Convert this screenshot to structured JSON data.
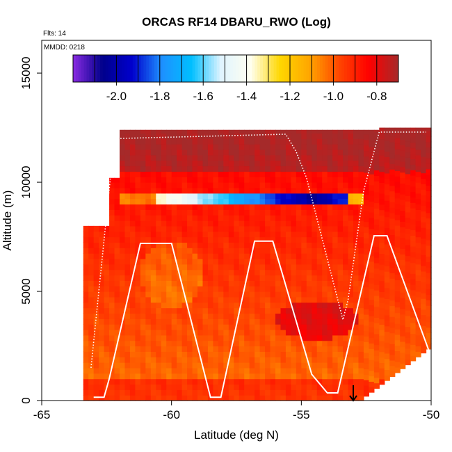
{
  "chart_data": {
    "type": "heatmap",
    "title": "ORCAS RF14 DBARU_RWO (Log)",
    "xlabel": "Latitude (deg N)",
    "ylabel": "Altitude (m)",
    "xlim": [
      -65,
      -50
    ],
    "ylim": [
      0,
      16500
    ],
    "x_ticks": [
      -65,
      -60,
      -55,
      -50
    ],
    "x_tick_labels": [
      "-65",
      "-60",
      "-55",
      "-50"
    ],
    "y_ticks": [
      0,
      5000,
      10000,
      15000
    ],
    "y_tick_labels": [
      "0",
      "5000",
      "10000",
      "15000"
    ],
    "annotations": {
      "flights": "Flts: 14",
      "mmdd": "MMDD: 0218"
    },
    "colorbar": {
      "ticks": [
        -2.0,
        -1.8,
        -1.6,
        -1.4,
        -1.2,
        -1.0,
        -0.8
      ],
      "tick_labels": [
        "-2.0",
        "-1.8",
        "-1.6",
        "-1.4",
        "-1.2",
        "-1.0",
        "-0.8"
      ],
      "range": [
        -2.2,
        -0.7
      ],
      "colors": [
        "#8a2be2",
        "#00008b",
        "#0000cd",
        "#1e90ff",
        "#00bfff",
        "#e0f4ff",
        "#fffff0",
        "#ffd700",
        "#ffa500",
        "#ff4500",
        "#ff0000",
        "#a52a2a"
      ]
    },
    "flight_track": [
      [
        -63.0,
        150
      ],
      [
        -62.6,
        150
      ],
      [
        -62.4,
        1000
      ],
      [
        -61.2,
        7200
      ],
      [
        -60.0,
        7200
      ],
      [
        -58.5,
        150
      ],
      [
        -58.1,
        150
      ],
      [
        -56.8,
        7300
      ],
      [
        -56.1,
        7300
      ],
      [
        -54.6,
        1200
      ],
      [
        -54.0,
        350
      ],
      [
        -53.6,
        350
      ],
      [
        -52.2,
        7550
      ],
      [
        -51.7,
        7550
      ],
      [
        -50.0,
        2000
      ]
    ],
    "dotted_track": [
      [
        -63.1,
        1500
      ],
      [
        -62.2,
        12000
      ],
      [
        -55.6,
        12200
      ],
      [
        -55.2,
        11400
      ],
      [
        -54.8,
        10200
      ],
      [
        -53.4,
        3700
      ],
      [
        -53.2,
        4600
      ],
      [
        -52.6,
        9600
      ],
      [
        -52.0,
        12300
      ],
      [
        -50.2,
        12300
      ]
    ],
    "marker": {
      "x": -53.0,
      "y_top": 700,
      "y_bottom": 0,
      "label": "arrow"
    }
  }
}
